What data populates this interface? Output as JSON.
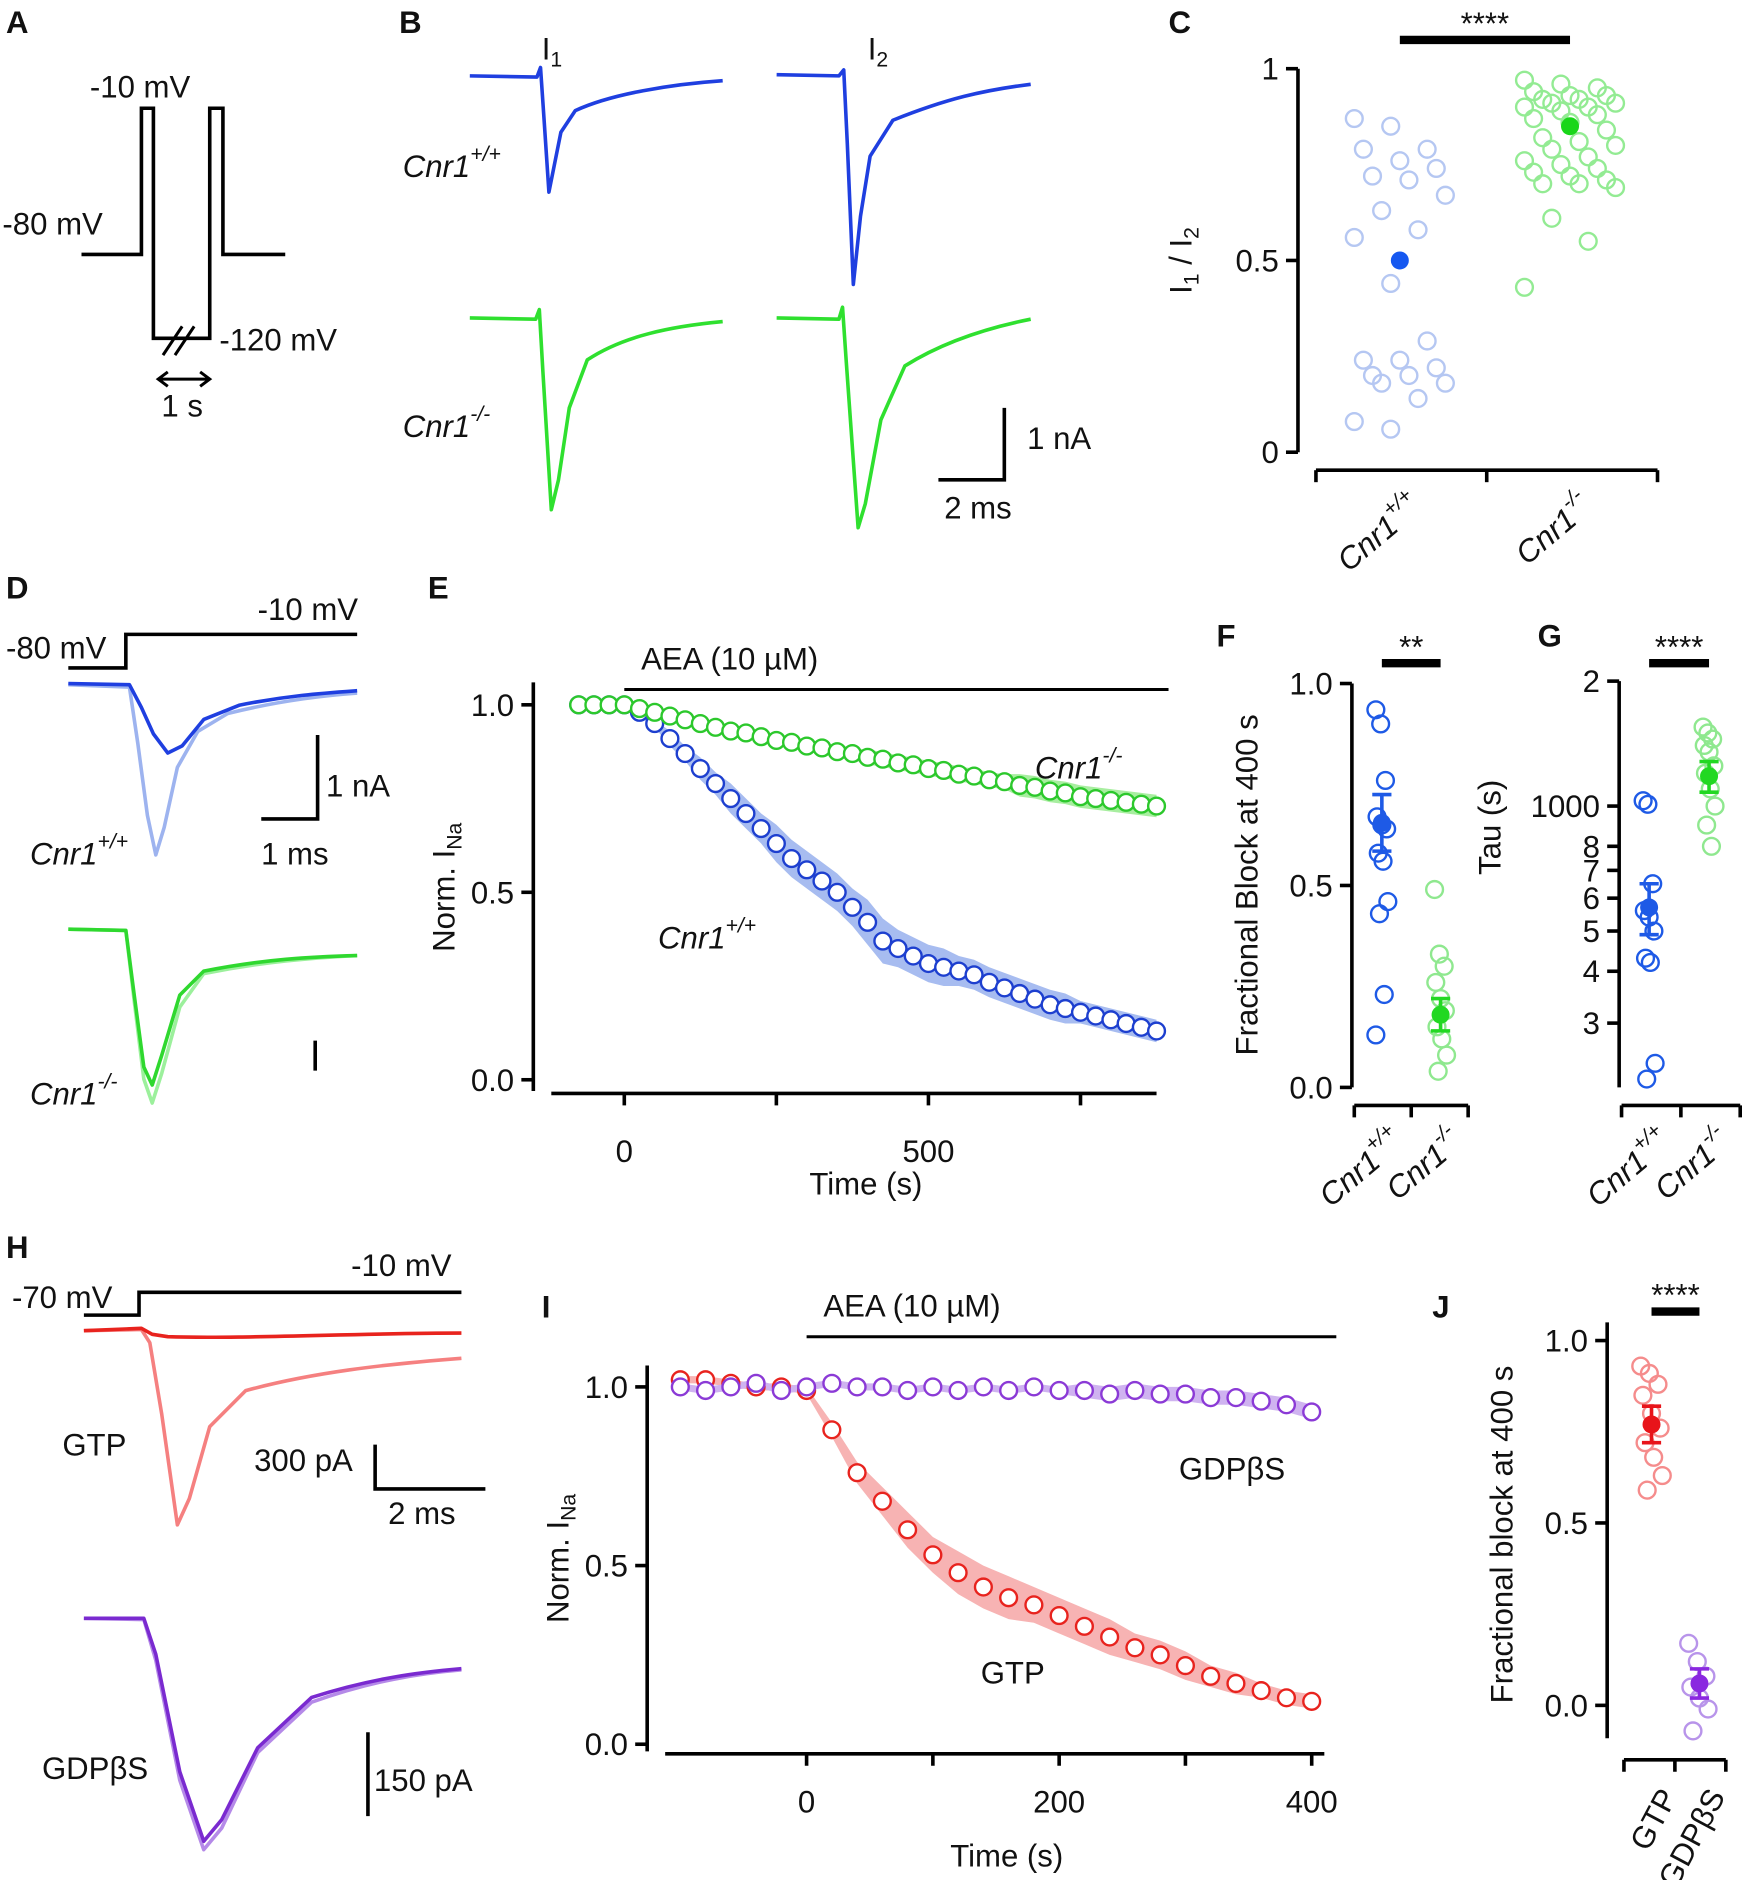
{
  "panel_labels": [
    "A",
    "B",
    "C",
    "D",
    "E",
    "F",
    "G",
    "H",
    "I",
    "J"
  ],
  "genotypes": [
    {
      "text": "Cnr1",
      "sup": "+/+"
    },
    {
      "text": "Cnr1",
      "sup": "-/-"
    }
  ],
  "panel_A": {
    "voltages": [
      "-10 mV",
      "-80 mV",
      "-120 mV"
    ],
    "time_scale": "1 s"
  },
  "panel_B": {
    "columns": [
      {
        "text": "I",
        "sub": "1"
      },
      {
        "text": "I",
        "sub": "2"
      }
    ],
    "scale_current": "1 nA",
    "scale_time": "2 ms"
  },
  "panel_D": {
    "voltages": [
      "-80 mV",
      "-10 mV"
    ],
    "scale_current": "1 nA",
    "scale_time": "1 ms"
  },
  "panel_H": {
    "voltages": [
      "-70 mV",
      "-10 mV"
    ],
    "conditions": [
      "GTP",
      "GDPβS"
    ],
    "scale_current": [
      "300 pA",
      "150 pA"
    ],
    "scale_time": "2 ms"
  },
  "chart_data": [
    {
      "type": "strip",
      "ylabel": [
        {
          "text": "I",
          "sub": "1"
        },
        {
          "text": " / I",
          "sub": "2"
        }
      ],
      "categories": [
        {
          "text": "Cnr1",
          "sup": "+/+"
        },
        {
          "text": "Cnr1",
          "sup": "-/-"
        }
      ],
      "ylim": [
        0,
        1
      ],
      "yticks": [
        0,
        0.5,
        1
      ],
      "significance": "****",
      "series": [
        {
          "color": "#b5c7f2",
          "mean_color": "#1658f0",
          "values": [
            0.87,
            0.85,
            0.79,
            0.79,
            0.76,
            0.74,
            0.72,
            0.71,
            0.67,
            0.63,
            0.58,
            0.56,
            0.44,
            0.29,
            0.24,
            0.24,
            0.22,
            0.2,
            0.2,
            0.18,
            0.18,
            0.14,
            0.08,
            0.06
          ],
          "mean": 0.5
        },
        {
          "color": "#93eb93",
          "mean_color": "#19d619",
          "values": [
            0.97,
            0.96,
            0.95,
            0.94,
            0.93,
            0.93,
            0.92,
            0.92,
            0.91,
            0.91,
            0.9,
            0.9,
            0.89,
            0.88,
            0.87,
            0.86,
            0.84,
            0.82,
            0.81,
            0.8,
            0.79,
            0.77,
            0.76,
            0.75,
            0.74,
            0.73,
            0.72,
            0.71,
            0.7,
            0.7,
            0.69,
            0.61,
            0.55,
            0.43
          ],
          "mean": 0.85
        }
      ]
    },
    {
      "type": "line",
      "annotation": "AEA (10 µM)",
      "xlabel": "Time (s)",
      "ylabel": {
        "text": "Norm. I",
        "sub": "Na"
      },
      "xlim": [
        -120,
        875
      ],
      "xticks": [
        0,
        500
      ],
      "xminor": [
        250,
        750
      ],
      "ylim": [
        -0.03,
        1.06
      ],
      "yticks": [
        {
          "value": 0,
          "label": "0.0"
        },
        {
          "value": 0.5,
          "label": "0.5"
        },
        {
          "value": 1,
          "label": "1.0"
        }
      ],
      "x": [
        -75,
        -50,
        -25,
        0,
        25,
        50,
        75,
        100,
        125,
        150,
        175,
        200,
        225,
        250,
        275,
        300,
        325,
        350,
        375,
        400,
        425,
        450,
        475,
        500,
        525,
        550,
        575,
        600,
        625,
        650,
        675,
        700,
        725,
        750,
        775,
        800,
        825,
        850,
        875
      ],
      "series": [
        {
          "name": {
            "text": "Cnr1",
            "sup": "+/+"
          },
          "color": "#1d3fcf",
          "band_color": "#a7bcf0",
          "values": [
            1,
            1,
            1,
            1,
            0.98,
            0.95,
            0.91,
            0.87,
            0.83,
            0.79,
            0.75,
            0.71,
            0.67,
            0.63,
            0.59,
            0.56,
            0.53,
            0.5,
            0.46,
            0.42,
            0.37,
            0.35,
            0.33,
            0.31,
            0.3,
            0.29,
            0.28,
            0.26,
            0.245,
            0.23,
            0.215,
            0.2,
            0.19,
            0.18,
            0.17,
            0.16,
            0.15,
            0.14,
            0.13
          ],
          "errors": [
            0,
            0,
            0,
            0,
            0.01,
            0.01,
            0.02,
            0.02,
            0.03,
            0.03,
            0.04,
            0.04,
            0.04,
            0.05,
            0.05,
            0.05,
            0.05,
            0.05,
            0.05,
            0.06,
            0.06,
            0.05,
            0.05,
            0.05,
            0.05,
            0.04,
            0.04,
            0.04,
            0.04,
            0.04,
            0.04,
            0.04,
            0.04,
            0.03,
            0.03,
            0.03,
            0.03,
            0.03,
            0.03
          ]
        },
        {
          "name": {
            "text": "Cnr1",
            "sup": "-/-"
          },
          "color": "#2cc82c",
          "band_color": "#a8eea0",
          "values": [
            1,
            1,
            1,
            1,
            0.99,
            0.98,
            0.97,
            0.96,
            0.95,
            0.94,
            0.93,
            0.925,
            0.915,
            0.905,
            0.9,
            0.89,
            0.885,
            0.875,
            0.87,
            0.86,
            0.855,
            0.845,
            0.84,
            0.83,
            0.825,
            0.815,
            0.81,
            0.8,
            0.795,
            0.785,
            0.78,
            0.77,
            0.765,
            0.755,
            0.75,
            0.745,
            0.74,
            0.735,
            0.73
          ],
          "errors": [
            0,
            0,
            0,
            0,
            0.01,
            0.01,
            0.01,
            0.01,
            0.01,
            0.015,
            0.015,
            0.015,
            0.015,
            0.015,
            0.015,
            0.015,
            0.015,
            0.015,
            0.015,
            0.02,
            0.02,
            0.02,
            0.02,
            0.02,
            0.02,
            0.02,
            0.02,
            0.02,
            0.02,
            0.03,
            0.03,
            0.03,
            0.03,
            0.03,
            0.03,
            0.03,
            0.03,
            0.03,
            0.03
          ]
        }
      ]
    },
    {
      "type": "strip",
      "ylabel": "Fractional Block at 400 s",
      "categories": [
        {
          "text": "Cnr1",
          "sup": "+/+"
        },
        {
          "text": "Cnr1",
          "sup": "-/-"
        }
      ],
      "ylim": [
        0,
        1
      ],
      "yticks": [
        {
          "value": 0,
          "label": "0.0"
        },
        {
          "value": 0.5,
          "label": "0.5"
        },
        {
          "value": 1,
          "label": "1.0"
        }
      ],
      "significance": "**",
      "series": [
        {
          "color": "#1e5ae6",
          "mean_color": "#1e5ae6",
          "values": [
            0.935,
            0.9,
            0.76,
            0.67,
            0.65,
            0.64,
            0.58,
            0.56,
            0.46,
            0.43,
            0.23,
            0.13
          ],
          "mean": 0.655,
          "error": 0.07
        },
        {
          "color": "#8fe88f",
          "mean_color": "#22d822",
          "values": [
            0.49,
            0.33,
            0.3,
            0.26,
            0.22,
            0.19,
            0.15,
            0.12,
            0.08,
            0.04
          ],
          "mean": 0.18,
          "error": 0.04
        }
      ]
    },
    {
      "type": "strip",
      "ylabel": "Tau (s)",
      "log_y": true,
      "categories": [
        {
          "text": "Cnr1",
          "sup": "+/+"
        },
        {
          "text": "Cnr1",
          "sup": "-/-"
        }
      ],
      "ylim": [
        210,
        2000
      ],
      "yticks": [
        {
          "value": 2000,
          "label": "2"
        },
        1000,
        {
          "value": 800,
          "label": "8"
        },
        {
          "value": 700,
          "label": "7"
        },
        {
          "value": 600,
          "label": "6"
        },
        {
          "value": 500,
          "label": "5"
        },
        {
          "value": 400,
          "label": "4"
        },
        {
          "value": 300,
          "label": "3"
        }
      ],
      "significance": "****",
      "series": [
        {
          "color": "#1e5ae6",
          "mean_color": "#1e5ae6",
          "values": [
            1030,
            1010,
            650,
            560,
            540,
            500,
            430,
            420,
            240,
            220
          ],
          "mean": 570,
          "error": 80
        },
        {
          "color": "#8fe88f",
          "mean_color": "#22d822",
          "values": [
            1550,
            1500,
            1450,
            1400,
            1350,
            1250,
            1200,
            1100,
            1000,
            900,
            800
          ],
          "mean": 1180,
          "error": 100
        }
      ]
    },
    {
      "type": "line",
      "annotation": "AEA (10 µM)",
      "xlabel": "Time (s)",
      "ylabel": {
        "text": "Norm. I",
        "sub": "Na"
      },
      "xlim": [
        -112,
        410
      ],
      "xticks": [
        0,
        200,
        400
      ],
      "xminor": [
        100,
        300
      ],
      "ylim": [
        -0.02,
        1.06
      ],
      "yticks": [
        {
          "value": 0,
          "label": "0.0"
        },
        {
          "value": 0.5,
          "label": "0.5"
        },
        {
          "value": 1,
          "label": "1.0"
        }
      ],
      "x": [
        -100,
        -80,
        -60,
        -40,
        -20,
        0,
        20,
        40,
        60,
        80,
        100,
        120,
        140,
        160,
        180,
        200,
        220,
        240,
        260,
        280,
        300,
        320,
        340,
        360,
        380,
        400
      ],
      "series": [
        {
          "name": "GTP",
          "color": "#e8231e",
          "band_color": "#f7b3b3",
          "values": [
            1.02,
            1.02,
            1.01,
            1,
            1,
            0.99,
            0.88,
            0.76,
            0.68,
            0.6,
            0.53,
            0.48,
            0.44,
            0.41,
            0.39,
            0.36,
            0.33,
            0.3,
            0.27,
            0.25,
            0.22,
            0.19,
            0.17,
            0.15,
            0.13,
            0.12
          ],
          "errors": [
            0.01,
            0.01,
            0.01,
            0.01,
            0.01,
            0.01,
            0.02,
            0.03,
            0.04,
            0.05,
            0.05,
            0.06,
            0.06,
            0.06,
            0.05,
            0.05,
            0.05,
            0.05,
            0.04,
            0.04,
            0.04,
            0.03,
            0.03,
            0.02,
            0.02,
            0.02
          ]
        },
        {
          "name": "GDPβS",
          "color": "#8b3ad6",
          "band_color": "#cfb3f0",
          "values": [
            1,
            0.99,
            1,
            1.01,
            0.99,
            1,
            1.01,
            1,
            1,
            0.99,
            1,
            0.99,
            1,
            0.99,
            1,
            0.99,
            0.99,
            0.98,
            0.99,
            0.98,
            0.98,
            0.97,
            0.97,
            0.96,
            0.95,
            0.93
          ],
          "errors": [
            0.01,
            0.01,
            0.01,
            0.01,
            0.01,
            0.01,
            0.01,
            0.01,
            0.01,
            0.01,
            0.01,
            0.01,
            0.01,
            0.01,
            0.01,
            0.01,
            0.02,
            0.02,
            0.02,
            0.02,
            0.02,
            0.02,
            0.02,
            0.02,
            0.02,
            0.02
          ]
        }
      ]
    },
    {
      "type": "strip",
      "ylabel": "Fractional block at 400 s",
      "categories": [
        "GTP",
        "GDPβS"
      ],
      "ylim": [
        -0.09,
        1.05
      ],
      "yticks": [
        {
          "value": 0,
          "label": "0.0"
        },
        {
          "value": 0.5,
          "label": "0.5"
        },
        {
          "value": 1,
          "label": "1.0"
        }
      ],
      "significance": "****",
      "series": [
        {
          "color": "#f58c8c",
          "mean_color": "#e8141a",
          "values": [
            0.93,
            0.91,
            0.88,
            0.85,
            0.8,
            0.76,
            0.72,
            0.68,
            0.63,
            0.59
          ],
          "mean": 0.77,
          "error": 0.05
        },
        {
          "color": "#b894ea",
          "mean_color": "#8a28e0",
          "values": [
            0.17,
            0.12,
            0.08,
            0.05,
            0.02,
            -0.01,
            -0.07
          ],
          "mean": 0.06,
          "error": 0.04
        }
      ]
    }
  ]
}
